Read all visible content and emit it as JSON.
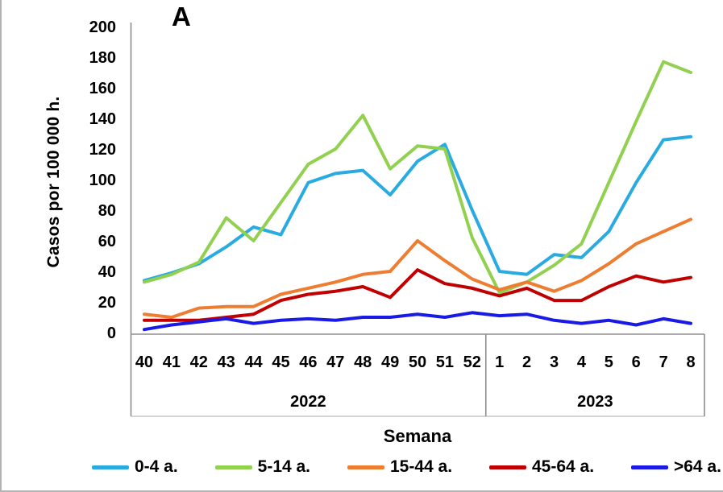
{
  "chart_data": {
    "type": "line",
    "title": "A",
    "xlabel": "Semana",
    "ylabel": "Casos por 100 000 h.",
    "ylim": [
      0,
      200
    ],
    "y_ticks": [
      0,
      20,
      40,
      60,
      80,
      100,
      120,
      140,
      160,
      180,
      200
    ],
    "grid": false,
    "legend_position": "bottom",
    "categories": [
      "40",
      "41",
      "42",
      "43",
      "44",
      "45",
      "46",
      "47",
      "48",
      "49",
      "50",
      "51",
      "52",
      "1",
      "2",
      "3",
      "4",
      "5",
      "6",
      "7",
      "8"
    ],
    "x_groups": [
      {
        "label": "2022",
        "span": 13
      },
      {
        "label": "2023",
        "span": 8
      }
    ],
    "series": [
      {
        "name": "0-4 a.",
        "color": "#29abe2",
        "values": [
          34,
          39,
          45,
          56,
          69,
          64,
          98,
          104,
          106,
          90,
          112,
          123,
          80,
          40,
          38,
          51,
          49,
          66,
          98,
          126,
          128
        ]
      },
      {
        "name": "5-14 a.",
        "color": "#92d050",
        "values": [
          33,
          38,
          46,
          75,
          60,
          85,
          110,
          120,
          142,
          107,
          122,
          120,
          62,
          26,
          33,
          44,
          58,
          98,
          138,
          177,
          170
        ]
      },
      {
        "name": "15-44 a.",
        "color": "#ed7d31",
        "values": [
          12,
          10,
          16,
          17,
          17,
          25,
          29,
          33,
          38,
          40,
          60,
          47,
          35,
          28,
          33,
          27,
          34,
          45,
          58,
          66,
          74
        ]
      },
      {
        "name": "45-64 a.",
        "color": "#c00000",
        "values": [
          8,
          8,
          8,
          10,
          12,
          21,
          25,
          27,
          30,
          23,
          41,
          32,
          29,
          24,
          29,
          21,
          21,
          30,
          37,
          33,
          36
        ]
      },
      {
        "name": ">64 a.",
        "color": "#1a1ae6",
        "values": [
          2,
          5,
          7,
          9,
          6,
          8,
          9,
          8,
          10,
          10,
          12,
          10,
          13,
          11,
          12,
          8,
          6,
          8,
          5,
          9,
          6
        ]
      }
    ]
  }
}
